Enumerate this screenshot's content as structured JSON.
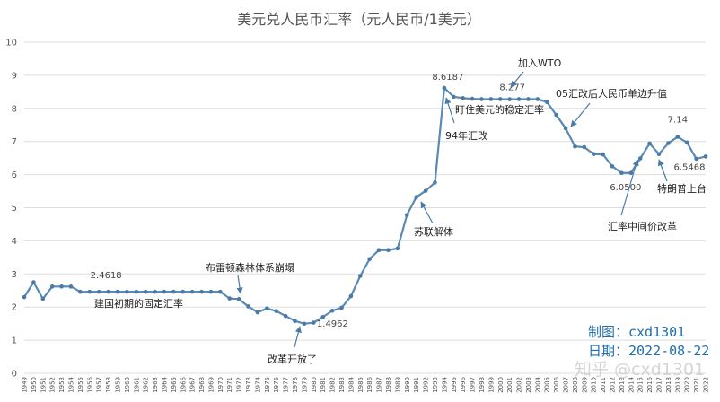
{
  "chart_data": {
    "type": "line",
    "title": "美元兑人民币汇率（元人民币/1美元）",
    "ylim": [
      0,
      10
    ],
    "yticks": [
      0,
      1,
      2,
      3,
      4,
      5,
      6,
      7,
      8,
      9,
      10
    ],
    "grid": true,
    "legend": "none",
    "x": [
      "1949",
      "1950",
      "1951",
      "1952",
      "1953",
      "1954",
      "1955",
      "1956",
      "1957",
      "1958",
      "1959",
      "1960",
      "1961",
      "1962",
      "1963",
      "1964",
      "1965",
      "1966",
      "1967",
      "1968",
      "1969",
      "1970",
      "1971",
      "1972",
      "1973",
      "1974",
      "1975",
      "1976",
      "1977",
      "1978",
      "1979",
      "1980",
      "1981",
      "1982",
      "1983",
      "1984",
      "1985",
      "1986",
      "1987",
      "1988",
      "1989",
      "1990",
      "1991",
      "1992",
      "1993",
      "1994",
      "1995",
      "1996",
      "1997",
      "1998",
      "1999",
      "2000",
      "2001",
      "2002",
      "2003",
      "2004",
      "2005",
      "2006",
      "2007",
      "2008",
      "2009",
      "2010",
      "2011",
      "2012",
      "2013",
      "2014",
      "2015",
      "2016",
      "2017",
      "2018",
      "2019",
      "2020",
      "2021",
      "2022"
    ],
    "series": [
      {
        "values": [
          2.3,
          2.75,
          2.25,
          2.62,
          2.62,
          2.62,
          2.46,
          2.4618,
          2.4618,
          2.4618,
          2.4618,
          2.4618,
          2.4618,
          2.4618,
          2.4618,
          2.4618,
          2.4618,
          2.4618,
          2.4618,
          2.4618,
          2.4618,
          2.4618,
          2.26,
          2.24,
          2.02,
          1.84,
          1.96,
          1.88,
          1.73,
          1.58,
          1.4962,
          1.53,
          1.7,
          1.89,
          1.98,
          2.33,
          2.94,
          3.45,
          3.72,
          3.72,
          3.77,
          4.78,
          5.32,
          5.51,
          5.76,
          8.6187,
          8.35,
          8.31,
          8.29,
          8.28,
          8.28,
          8.28,
          8.277,
          8.28,
          8.28,
          8.28,
          8.19,
          7.8,
          7.4,
          6.85,
          6.83,
          6.62,
          6.61,
          6.25,
          6.05,
          6.05,
          6.49,
          6.94,
          6.62,
          6.95,
          7.14,
          6.97,
          6.48,
          6.5468
        ]
      }
    ],
    "data_labels": [
      {
        "x": "1957",
        "text": "2.4618"
      },
      {
        "x": "1979",
        "text": "1.4962"
      },
      {
        "x": "1994",
        "text": "8.6187"
      },
      {
        "x": "2001",
        "text": "8.277"
      },
      {
        "x": "2014",
        "text": "6.0500"
      },
      {
        "x": "2019",
        "text": "7.14"
      },
      {
        "x": "2022",
        "text": "6.5468"
      }
    ],
    "annotations": [
      {
        "x": "1957",
        "text": "建国初期的固定汇率"
      },
      {
        "x": "1972",
        "text": "布雷顿森林体系崩塌"
      },
      {
        "x": "1979",
        "text": "改革开放了"
      },
      {
        "x": "1991",
        "text": "苏联解体"
      },
      {
        "x": "1994",
        "text": "94年汇改"
      },
      {
        "x": "1999",
        "text": "盯住美元的稳定汇率"
      },
      {
        "x": "2001",
        "text": "加入WTO"
      },
      {
        "x": "2007",
        "text": "05汇改后人民币单边升值"
      },
      {
        "x": "2016",
        "text": "汇率中间价改革"
      },
      {
        "x": "2018",
        "text": "特朗普上台"
      }
    ],
    "credits": {
      "author": "制图：cxd1301",
      "date": "日期：2022-08-22"
    },
    "watermark": "知乎 @cxd1301",
    "colors": {
      "line": "#5b8ab5",
      "marker": "#4a7aa6",
      "grid": "#dddddd",
      "arrow": "#4a7aa6",
      "credit": "#1f6fae"
    }
  }
}
